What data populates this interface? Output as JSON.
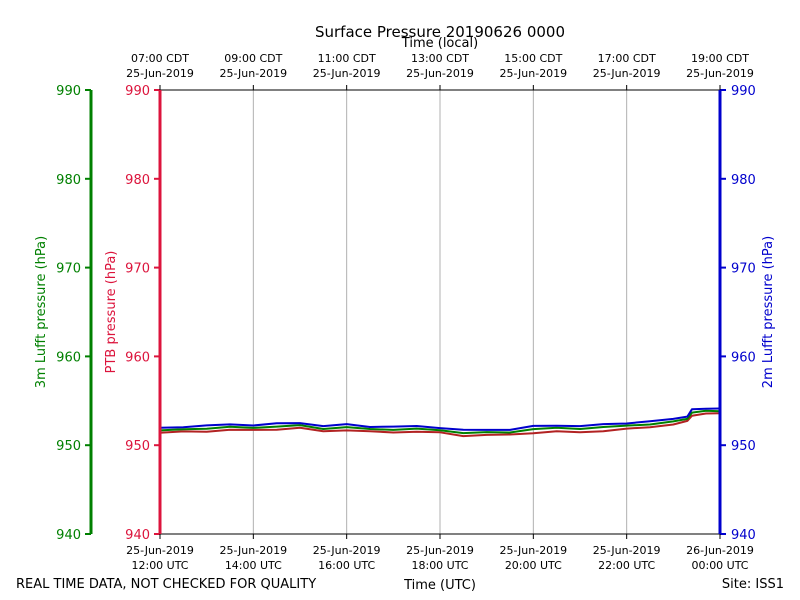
{
  "chart_data": {
    "type": "line",
    "title": "Surface Pressure 20190626 0000",
    "top_axis_label": "Time (local)",
    "bottom_axis_label": "Time (UTC)",
    "footer_left": "REAL TIME DATA, NOT CHECKED FOR QUALITY",
    "footer_right": "Site: ISS1",
    "x_range_hours": [
      12,
      24
    ],
    "ylim": [
      940,
      990
    ],
    "y_ticks": [
      940,
      950,
      960,
      970,
      980,
      990
    ],
    "axes": {
      "outer_left": {
        "label": "3m Lufft pressure (hPa)",
        "color": "#008000"
      },
      "inner_left": {
        "label": "PTB pressure (hPa)",
        "color": "#dc143c"
      },
      "right": {
        "label": "2m Lufft pressure (hPa)",
        "color": "#0000cd"
      }
    },
    "x_ticks": [
      {
        "hour": 12,
        "utc_date": "25-Jun-2019",
        "utc_time": "12:00 UTC",
        "local_time": "07:00 CDT",
        "local_date": "25-Jun-2019"
      },
      {
        "hour": 14,
        "utc_date": "25-Jun-2019",
        "utc_time": "14:00 UTC",
        "local_time": "09:00 CDT",
        "local_date": "25-Jun-2019"
      },
      {
        "hour": 16,
        "utc_date": "25-Jun-2019",
        "utc_time": "16:00 UTC",
        "local_time": "11:00 CDT",
        "local_date": "25-Jun-2019"
      },
      {
        "hour": 18,
        "utc_date": "25-Jun-2019",
        "utc_time": "18:00 UTC",
        "local_time": "13:00 CDT",
        "local_date": "25-Jun-2019"
      },
      {
        "hour": 20,
        "utc_date": "25-Jun-2019",
        "utc_time": "20:00 UTC",
        "local_time": "15:00 CDT",
        "local_date": "25-Jun-2019"
      },
      {
        "hour": 22,
        "utc_date": "25-Jun-2019",
        "utc_time": "22:00 UTC",
        "local_time": "17:00 CDT",
        "local_date": "25-Jun-2019"
      },
      {
        "hour": 24,
        "utc_date": "26-Jun-2019",
        "utc_time": "00:00 UTC",
        "local_time": "19:00 CDT",
        "local_date": "25-Jun-2019"
      }
    ],
    "series": [
      {
        "name": "PTB pressure",
        "color": "#b22222",
        "x": [
          12.0,
          12.5,
          13.0,
          13.5,
          14.0,
          14.5,
          15.0,
          15.5,
          16.0,
          16.5,
          17.0,
          17.5,
          18.0,
          18.5,
          19.0,
          19.5,
          20.0,
          20.5,
          21.0,
          21.5,
          22.0,
          22.5,
          23.0,
          23.3,
          23.4,
          23.7,
          24.0
        ],
        "values": [
          951.4,
          951.5,
          951.6,
          951.7,
          951.7,
          951.8,
          951.9,
          951.6,
          951.7,
          951.5,
          951.5,
          951.5,
          951.4,
          951.1,
          951.1,
          951.2,
          951.4,
          951.5,
          951.5,
          951.6,
          951.8,
          952.1,
          952.3,
          952.7,
          953.4,
          953.5,
          953.6
        ]
      },
      {
        "name": "3m Lufft pressure",
        "color": "#008000",
        "x": [
          12.0,
          12.5,
          13.0,
          13.5,
          14.0,
          14.5,
          15.0,
          15.5,
          16.0,
          16.5,
          17.0,
          17.5,
          18.0,
          18.5,
          19.0,
          19.5,
          20.0,
          20.5,
          21.0,
          21.5,
          22.0,
          22.5,
          23.0,
          23.3,
          23.4,
          23.7,
          24.0
        ],
        "values": [
          951.6,
          951.8,
          951.9,
          952.0,
          952.0,
          952.1,
          952.2,
          951.9,
          952.0,
          951.8,
          951.8,
          951.8,
          951.7,
          951.4,
          951.4,
          951.5,
          951.8,
          951.9,
          951.9,
          952.0,
          952.2,
          952.4,
          952.6,
          953.0,
          953.7,
          953.8,
          953.9
        ]
      },
      {
        "name": "2m Lufft pressure",
        "color": "#0000cd",
        "x": [
          12.0,
          12.5,
          13.0,
          13.5,
          14.0,
          14.5,
          15.0,
          15.5,
          16.0,
          16.5,
          17.0,
          17.5,
          18.0,
          18.5,
          19.0,
          19.5,
          20.0,
          20.5,
          21.0,
          21.5,
          22.0,
          22.5,
          23.0,
          23.3,
          23.4,
          23.7,
          24.0
        ],
        "values": [
          951.9,
          952.1,
          952.2,
          952.3,
          952.3,
          952.4,
          952.5,
          952.2,
          952.3,
          952.1,
          952.1,
          952.1,
          952.0,
          951.7,
          951.7,
          951.8,
          952.1,
          952.2,
          952.2,
          952.3,
          952.5,
          952.7,
          952.9,
          953.3,
          954.0,
          954.1,
          954.2
        ]
      }
    ]
  }
}
